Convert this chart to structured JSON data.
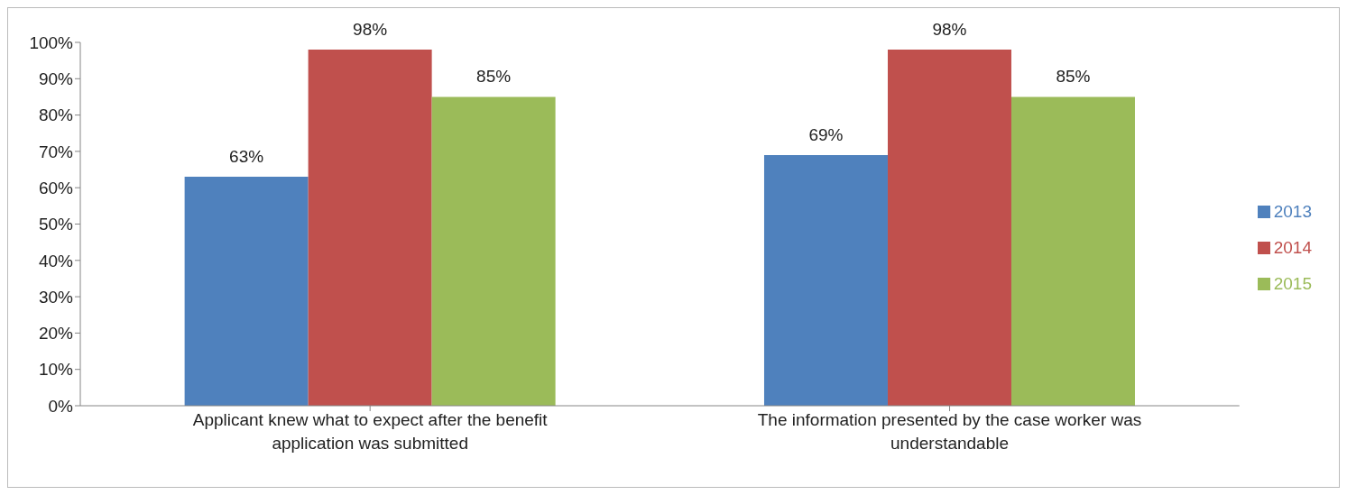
{
  "chart_data": {
    "type": "bar",
    "categories": [
      "Applicant knew what to expect after the benefit application was submitted",
      "The information presented by the case worker was understandable"
    ],
    "series": [
      {
        "name": "2013",
        "color": "#4f81bd",
        "values": [
          63,
          69
        ],
        "value_labels": [
          "63%",
          "69%"
        ]
      },
      {
        "name": "2014",
        "color": "#c0504d",
        "values": [
          98,
          98
        ],
        "value_labels": [
          "98%",
          "98%"
        ]
      },
      {
        "name": "2015",
        "color": "#9bbb59",
        "values": [
          85,
          85
        ],
        "value_labels": [
          "85%",
          "85%"
        ]
      }
    ],
    "ylim": [
      0,
      100
    ],
    "yticks": [
      {
        "value": 0,
        "label": "0%"
      },
      {
        "value": 10,
        "label": "10%"
      },
      {
        "value": 20,
        "label": "20%"
      },
      {
        "value": 30,
        "label": "30%"
      },
      {
        "value": 40,
        "label": "40%"
      },
      {
        "value": 50,
        "label": "50%"
      },
      {
        "value": 60,
        "label": "60%"
      },
      {
        "value": 70,
        "label": "70%"
      },
      {
        "value": 80,
        "label": "80%"
      },
      {
        "value": 90,
        "label": "90%"
      },
      {
        "value": 100,
        "label": "100%"
      }
    ],
    "grid": false,
    "legend": "right"
  }
}
